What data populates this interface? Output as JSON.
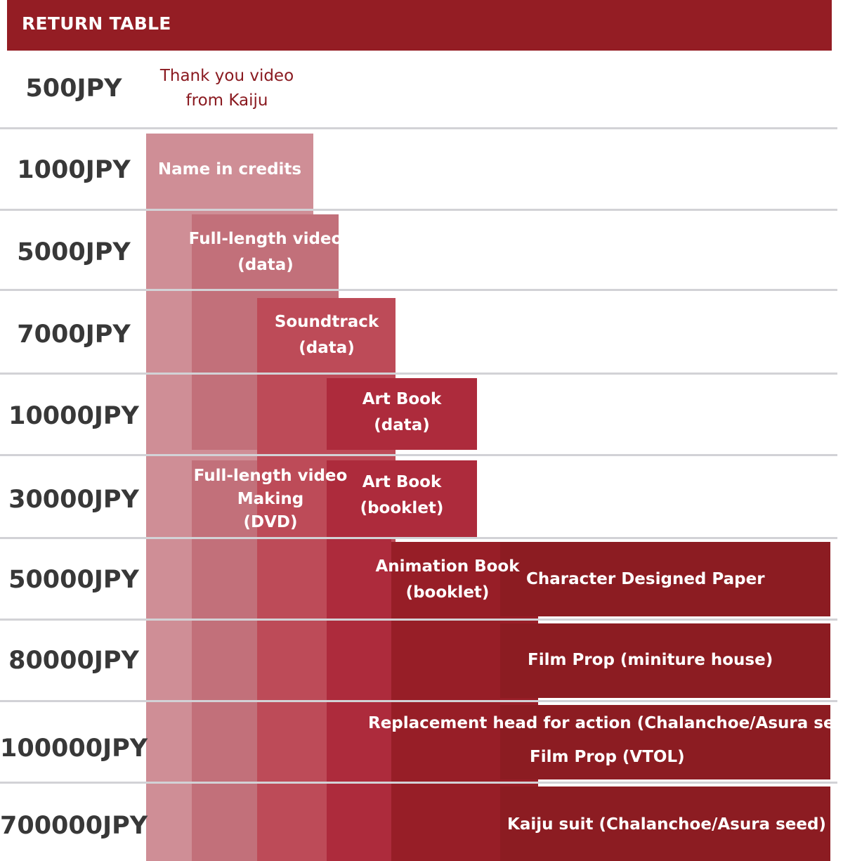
{
  "header": {
    "title": "RETURN TABLE"
  },
  "colors": {
    "header": "#941d24",
    "tier_text": "#383838",
    "first_reward_text": "#8a1a20",
    "separator": "#d2d2d6",
    "reward_shades": [
      "#cf8e96",
      "#c2707a",
      "#bd4b58",
      "#ad2b3c",
      "#971e27",
      "#8c1c22"
    ]
  },
  "chart_data": {
    "type": "table",
    "title": "RETURN TABLE",
    "tiers": [
      "500JPY",
      "1000JPY",
      "5000JPY",
      "7000JPY",
      "10000JPY",
      "30000JPY",
      "50000JPY",
      "80000JPY",
      "100000JPY",
      "700000JPY"
    ],
    "rewards": [
      {
        "text": "Thank you video\nfrom Kaiju",
        "tier": "500JPY"
      },
      {
        "text": "Name in credits",
        "tier": "1000JPY"
      },
      {
        "text": "Full-length video\n(data)",
        "tier": "5000JPY"
      },
      {
        "text": "Soundtrack\n(data)",
        "tier": "7000JPY"
      },
      {
        "text": "Art Book\n(data)",
        "tier": "10000JPY"
      },
      {
        "text": "Full-length video\nMaking\n(DVD)",
        "tier": "30000JPY"
      },
      {
        "text": "Art Book\n(booklet)",
        "tier": "30000JPY"
      },
      {
        "text": "Animation Book\n(booklet)",
        "tier": "50000JPY"
      },
      {
        "text": "Character Designed Paper",
        "tier": "50000JPY"
      },
      {
        "text": "Film Prop (miniture house)",
        "tier": "80000JPY"
      },
      {
        "text": "Replacement head for action (Chalanchoe/Asura seed)",
        "tier": "100000JPY"
      },
      {
        "text": "Film Prop (VTOL)",
        "tier": "100000JPY"
      },
      {
        "text": "Kaiju suit (Chalanchoe/Asura seed)",
        "tier": "700000JPY"
      }
    ]
  }
}
